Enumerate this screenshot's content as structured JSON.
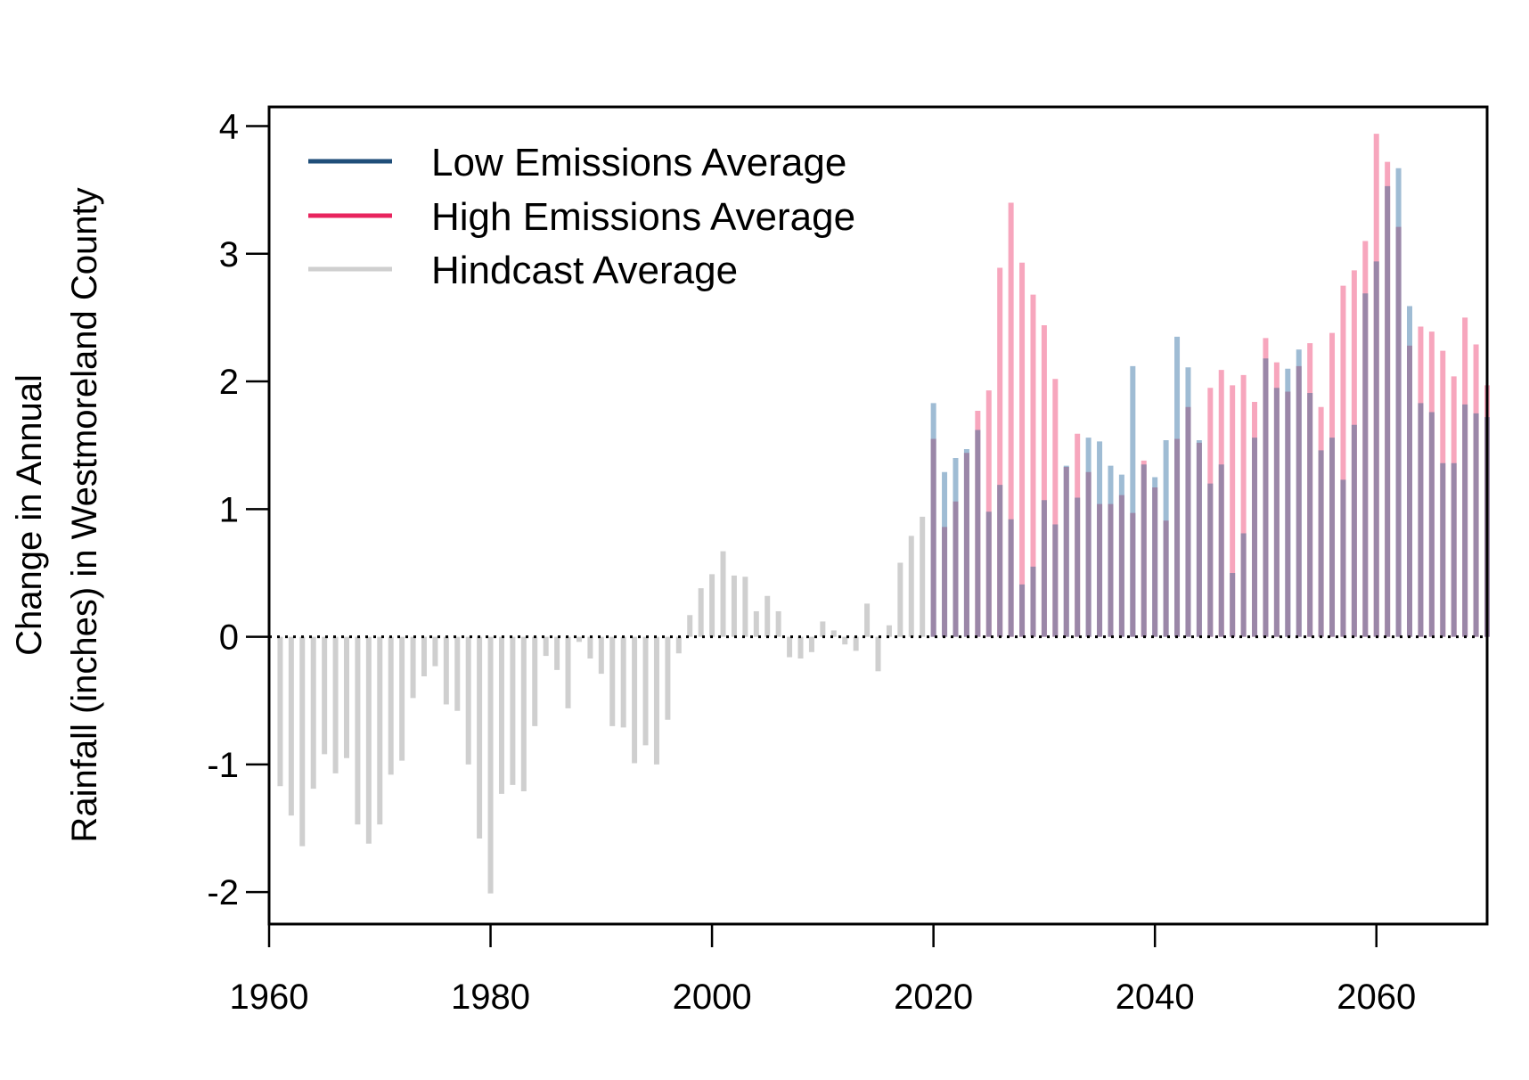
{
  "chart_data": {
    "type": "bar",
    "title": "",
    "xlabel": "",
    "ylabel_lines": [
      "Change in Annual",
      "Rainfall (inches) in Westmoreland County"
    ],
    "xlim": [
      1960,
      2070
    ],
    "ylim": [
      -2.25,
      4.15
    ],
    "x_ticks": [
      1960,
      1980,
      2000,
      2020,
      2040,
      2060
    ],
    "x_tick_labels": [
      "1960",
      "1980",
      "2000",
      "2020",
      "2040",
      "2060"
    ],
    "y_ticks": [
      -2,
      -1,
      0,
      1,
      2,
      3,
      4
    ],
    "y_tick_labels": [
      "-2",
      "-1",
      "0",
      "1",
      "2",
      "3",
      "4"
    ],
    "zero_line": "dotted",
    "legend_position": "top-left",
    "colors": {
      "low_legend": "#1f4e79",
      "high_legend": "#e8245e",
      "hindcast": "#cfcfcf",
      "low_bar": "#9fbcd4",
      "high_bar": "#f7a6bd",
      "overlap_bar": "#9b87a8"
    },
    "series": [
      {
        "name": "Low Emissions Average",
        "x": [
          2020,
          2021,
          2022,
          2023,
          2024,
          2025,
          2026,
          2027,
          2028,
          2029,
          2030,
          2031,
          2032,
          2033,
          2034,
          2035,
          2036,
          2037,
          2038,
          2039,
          2040,
          2041,
          2042,
          2043,
          2044,
          2045,
          2046,
          2047,
          2048,
          2049,
          2050,
          2051,
          2052,
          2053,
          2054,
          2055,
          2056,
          2057,
          2058,
          2059,
          2060,
          2061,
          2062,
          2063,
          2064,
          2065,
          2066,
          2067,
          2068,
          2069,
          2070
        ],
        "values": [
          1.83,
          1.29,
          1.4,
          1.47,
          1.62,
          0.98,
          1.19,
          0.92,
          0.41,
          0.55,
          1.07,
          0.88,
          1.34,
          1.09,
          1.56,
          1.53,
          1.34,
          1.27,
          2.12,
          1.35,
          1.25,
          1.54,
          2.35,
          2.11,
          1.54,
          1.2,
          1.35,
          0.5,
          0.81,
          1.56,
          2.18,
          1.95,
          2.1,
          2.25,
          1.91,
          1.46,
          1.56,
          1.23,
          1.66,
          2.69,
          2.94,
          3.53,
          3.67,
          2.59,
          1.83,
          1.76,
          1.36,
          1.36,
          1.82,
          1.75,
          1.72
        ]
      },
      {
        "name": "High Emissions Average",
        "x": [
          2020,
          2021,
          2022,
          2023,
          2024,
          2025,
          2026,
          2027,
          2028,
          2029,
          2030,
          2031,
          2032,
          2033,
          2034,
          2035,
          2036,
          2037,
          2038,
          2039,
          2040,
          2041,
          2042,
          2043,
          2044,
          2045,
          2046,
          2047,
          2048,
          2049,
          2050,
          2051,
          2052,
          2053,
          2054,
          2055,
          2056,
          2057,
          2058,
          2059,
          2060,
          2061,
          2062,
          2063,
          2064,
          2065,
          2066,
          2067,
          2068,
          2069,
          2070
        ],
        "values": [
          1.55,
          0.86,
          1.06,
          1.44,
          1.77,
          1.93,
          2.89,
          3.4,
          2.93,
          2.68,
          2.44,
          2.02,
          1.33,
          1.59,
          1.29,
          1.04,
          1.04,
          1.11,
          0.97,
          1.38,
          1.17,
          0.91,
          1.55,
          1.8,
          1.52,
          1.95,
          2.09,
          1.97,
          2.05,
          1.84,
          2.34,
          2.15,
          1.92,
          2.12,
          2.3,
          1.8,
          2.38,
          2.75,
          2.87,
          3.1,
          3.94,
          3.72,
          3.21,
          2.28,
          2.43,
          2.39,
          2.24,
          2.04,
          2.5,
          2.29,
          1.97
        ]
      },
      {
        "name": "Hindcast Average",
        "x": [
          1961,
          1962,
          1963,
          1964,
          1965,
          1966,
          1967,
          1968,
          1969,
          1970,
          1971,
          1972,
          1973,
          1974,
          1975,
          1976,
          1977,
          1978,
          1979,
          1980,
          1981,
          1982,
          1983,
          1984,
          1985,
          1986,
          1987,
          1988,
          1989,
          1990,
          1991,
          1992,
          1993,
          1994,
          1995,
          1996,
          1997,
          1998,
          1999,
          2000,
          2001,
          2002,
          2003,
          2004,
          2005,
          2006,
          2007,
          2008,
          2009,
          2010,
          2011,
          2012,
          2013,
          2014,
          2015,
          2016,
          2017,
          2018,
          2019
        ],
        "values": [
          -1.17,
          -1.4,
          -1.64,
          -1.19,
          -0.92,
          -1.07,
          -0.95,
          -1.47,
          -1.62,
          -1.47,
          -1.08,
          -0.97,
          -0.48,
          -0.31,
          -0.23,
          -0.53,
          -0.58,
          -1.0,
          -1.58,
          -2.01,
          -1.23,
          -1.16,
          -1.21,
          -0.7,
          -0.15,
          -0.26,
          -0.56,
          -0.04,
          -0.17,
          -0.29,
          -0.7,
          -0.71,
          -0.99,
          -0.85,
          -1.0,
          -0.65,
          -0.13,
          0.17,
          0.38,
          0.49,
          0.67,
          0.48,
          0.47,
          0.2,
          0.32,
          0.2,
          -0.16,
          -0.17,
          -0.12,
          0.12,
          0.05,
          -0.06,
          -0.11,
          0.26,
          -0.27,
          0.09,
          0.58,
          0.79,
          0.94
        ]
      }
    ]
  }
}
